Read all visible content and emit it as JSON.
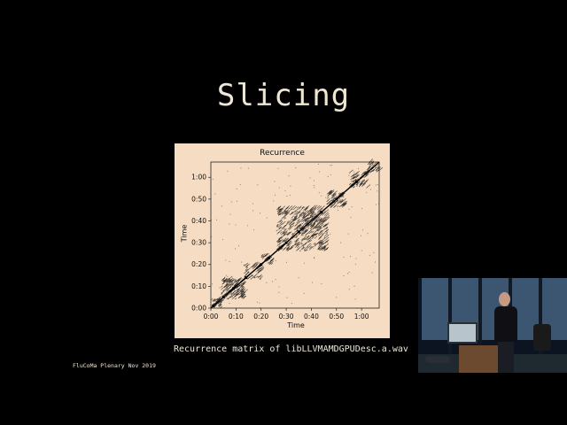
{
  "slide": {
    "title": "Slicing",
    "caption": "Recurrence matrix of libLLVMAMDGPUDesc.a.wav",
    "footer": "FluCoMa Plenary Nov 2019"
  },
  "colors": {
    "background": "#000000",
    "slide_text": "#efe6d4",
    "figure_background": "#f5dcc2"
  },
  "chart_data": {
    "type": "heatmap",
    "title": "Recurrence",
    "xlabel": "Time",
    "ylabel": "Time",
    "x_ticks": [
      "0:00",
      "0:10",
      "0:20",
      "0:30",
      "0:40",
      "0:50",
      "1:00"
    ],
    "y_ticks": [
      "0:00",
      "0:10",
      "0:20",
      "0:30",
      "0:40",
      "0:50",
      "1:00"
    ],
    "range_seconds": [
      0,
      67
    ],
    "blocks": [
      {
        "start": 0,
        "end": 4,
        "density": 0.45
      },
      {
        "start": 4,
        "end": 13,
        "density": 0.5
      },
      {
        "start": 13,
        "end": 20,
        "density": 0.3
      },
      {
        "start": 20,
        "end": 24,
        "density": 0.45
      },
      {
        "start": 26,
        "end": 46,
        "density": 0.3
      },
      {
        "start": 46,
        "end": 53,
        "density": 0.35
      },
      {
        "start": 55,
        "end": 62,
        "density": 0.35
      },
      {
        "start": 62,
        "end": 67,
        "density": 0.3
      }
    ]
  },
  "camera_inset": {
    "description_icon": "presenter-video-icon"
  }
}
